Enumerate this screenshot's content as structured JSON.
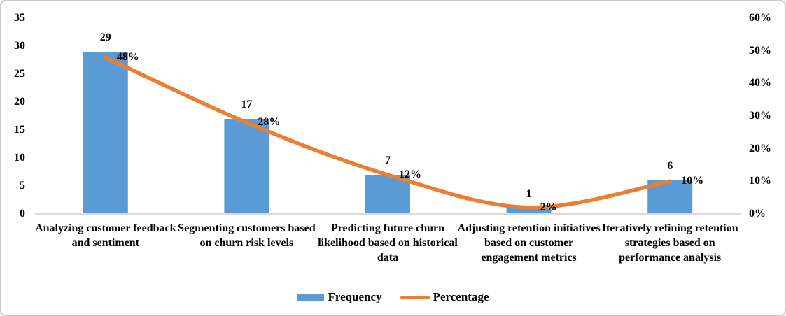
{
  "chart_data": {
    "type": "combo-bar-line",
    "title": "",
    "categories": [
      "Analyzing customer feedback and sentiment",
      "Segmenting customers based on churn risk levels",
      "Predicting future churn likelihood based on historical data",
      "Adjusting retention initiatives based on customer engagement metrics",
      "Iteratively refining retention strategies based on performance analysis"
    ],
    "series": [
      {
        "name": "Frequency",
        "type": "bar",
        "axis": "left",
        "color": "#5B9BD5",
        "values": [
          29,
          17,
          7,
          1,
          6
        ],
        "labels": [
          "29",
          "17",
          "7",
          "1",
          "6"
        ]
      },
      {
        "name": "Percentage",
        "type": "line",
        "axis": "right",
        "color": "#ED7D31",
        "values": [
          48,
          28,
          12,
          2,
          10
        ],
        "labels": [
          "48%",
          "28%",
          "12%",
          "2%",
          "10%"
        ]
      }
    ],
    "left_axis": {
      "min": 0,
      "max": 35,
      "step": 5,
      "ticks": [
        "0",
        "5",
        "10",
        "15",
        "20",
        "25",
        "30",
        "35"
      ]
    },
    "right_axis": {
      "min": 0,
      "max": 60,
      "step": 10,
      "ticks": [
        "0%",
        "10%",
        "20%",
        "30%",
        "40%",
        "50%",
        "60%"
      ]
    },
    "grid": false,
    "legend_position": "bottom"
  },
  "legend": {
    "items": [
      {
        "label": "Frequency",
        "swatch": "bar",
        "color": "#5B9BD5"
      },
      {
        "label": "Percentage",
        "swatch": "line",
        "color": "#ED7D31"
      }
    ]
  },
  "colors": {
    "bar": "#5B9BD5",
    "line": "#ED7D31",
    "axis_line": "#d9d9d9",
    "text": "#000000",
    "border": "#c9c9c9",
    "background": "#ffffff"
  }
}
